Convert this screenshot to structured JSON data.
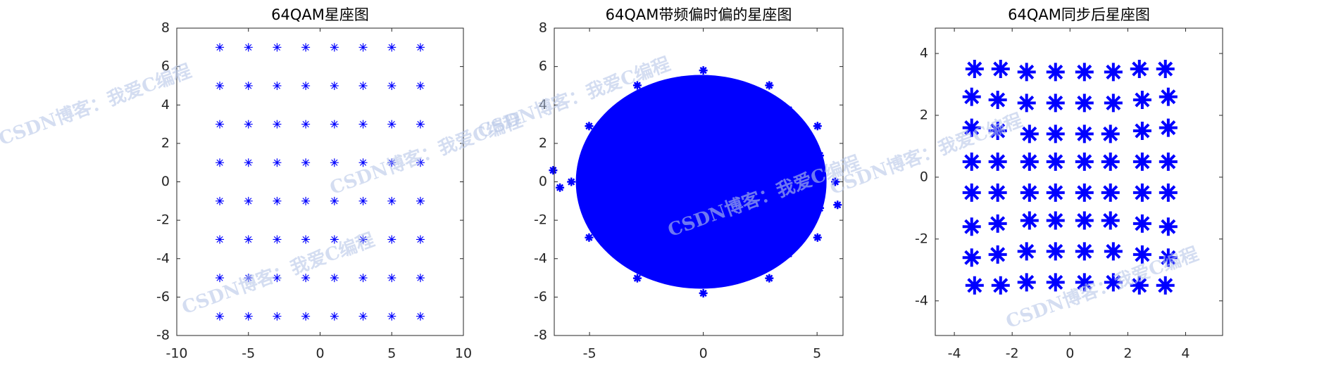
{
  "chart_data": [
    {
      "type": "scatter",
      "title": "64QAM星座图",
      "color": "#0000ff",
      "x": [
        -7,
        -5,
        -3,
        -1,
        1,
        3,
        5,
        7,
        -7,
        -5,
        -3,
        -1,
        1,
        3,
        5,
        7,
        -7,
        -5,
        -3,
        -1,
        1,
        3,
        5,
        7,
        -7,
        -5,
        -3,
        -1,
        1,
        3,
        5,
        7,
        -7,
        -5,
        -3,
        -1,
        1,
        3,
        5,
        7,
        -7,
        -5,
        -3,
        -1,
        1,
        3,
        5,
        7,
        -7,
        -5,
        -3,
        -1,
        1,
        3,
        5,
        7,
        -7,
        -5,
        -3,
        -1,
        1,
        3,
        5,
        7
      ],
      "y": [
        7,
        7,
        7,
        7,
        7,
        7,
        7,
        7,
        5,
        5,
        5,
        5,
        5,
        5,
        5,
        5,
        3,
        3,
        3,
        3,
        3,
        3,
        3,
        3,
        1,
        1,
        1,
        1,
        1,
        1,
        1,
        1,
        -1,
        -1,
        -1,
        -1,
        -1,
        -1,
        -1,
        -1,
        -3,
        -3,
        -3,
        -3,
        -3,
        -3,
        -3,
        -3,
        -5,
        -5,
        -5,
        -5,
        -5,
        -5,
        -5,
        -5,
        -7,
        -7,
        -7,
        -7,
        -7,
        -7,
        -7,
        -7
      ],
      "xlim": [
        -10,
        10
      ],
      "xticks": [
        -10,
        -5,
        0,
        5,
        10
      ],
      "ylim": [
        -8,
        8
      ],
      "yticks": [
        -8,
        -6,
        -4,
        -2,
        0,
        2,
        4,
        6,
        8
      ]
    },
    {
      "type": "scatter",
      "title": "64QAM带频偏时偏的星座图",
      "color": "#0000ff",
      "x": [
        5.8,
        5.02,
        2.9,
        0,
        -2.9,
        -5.02,
        -5.8,
        -5.02,
        -2.9,
        0,
        2.9,
        5.02,
        5.12,
        3.75,
        1.37,
        -1.37,
        -3.75,
        -5.12,
        -5.12,
        -3.75,
        -1.37,
        1.37,
        3.75,
        5.12,
        -6.6,
        5.9,
        -6.3,
        0,
        2,
        -2,
        0,
        3,
        -3
      ],
      "y": [
        0,
        2.9,
        5.02,
        5.8,
        5.02,
        2.9,
        0,
        -2.9,
        -5.02,
        -5.8,
        -5.02,
        -2.9,
        1.37,
        3.75,
        5.12,
        5.12,
        3.75,
        1.37,
        -1.37,
        -3.75,
        -5.12,
        -5.12,
        -3.75,
        -1.37,
        0.6,
        -1.2,
        -0.3,
        0,
        2,
        -2,
        3,
        -1,
        1
      ],
      "xlim": [
        -6.55,
        6.14
      ],
      "xticks": [
        -5,
        0,
        5
      ],
      "ylim": [
        -8,
        8
      ],
      "yticks": [
        -8,
        -6,
        -4,
        -2,
        0,
        2,
        4,
        6,
        8
      ]
    },
    {
      "type": "scatter",
      "title": "64QAM同步后星座图",
      "color": "#0000ff",
      "x": [
        -3.3,
        -2.4,
        -1.5,
        -0.5,
        0.5,
        1.5,
        2.4,
        3.3,
        -3.4,
        -2.5,
        -1.5,
        -0.5,
        0.5,
        1.5,
        2.5,
        3.4,
        -3.4,
        -2.5,
        -1.4,
        -0.5,
        0.5,
        1.4,
        2.5,
        3.4,
        -3.4,
        -2.5,
        -1.4,
        -0.5,
        0.5,
        1.4,
        2.5,
        3.4,
        -3.4,
        -2.5,
        -1.4,
        -0.5,
        0.5,
        1.4,
        2.5,
        3.4,
        -3.4,
        -2.5,
        -1.4,
        -0.5,
        0.5,
        1.4,
        2.5,
        3.4,
        -3.4,
        -2.5,
        -1.5,
        -0.5,
        0.5,
        1.5,
        2.5,
        3.4,
        -3.3,
        -2.4,
        -1.5,
        -0.5,
        0.5,
        1.5,
        2.4,
        3.3
      ],
      "y": [
        3.5,
        3.5,
        3.4,
        3.4,
        3.4,
        3.4,
        3.5,
        3.5,
        2.6,
        2.5,
        2.4,
        2.4,
        2.4,
        2.4,
        2.5,
        2.6,
        1.6,
        1.5,
        1.4,
        1.4,
        1.4,
        1.4,
        1.5,
        1.6,
        0.5,
        0.5,
        0.5,
        0.5,
        0.5,
        0.5,
        0.5,
        0.5,
        -0.5,
        -0.5,
        -0.5,
        -0.5,
        -0.5,
        -0.5,
        -0.5,
        -0.5,
        -1.6,
        -1.5,
        -1.4,
        -1.4,
        -1.4,
        -1.4,
        -1.5,
        -1.6,
        -2.6,
        -2.5,
        -2.4,
        -2.4,
        -2.4,
        -2.4,
        -2.5,
        -2.6,
        -3.5,
        -3.5,
        -3.4,
        -3.4,
        -3.4,
        -3.4,
        -3.5,
        -3.5
      ],
      "xlim": [
        -4.66,
        5.28
      ],
      "xticks": [
        -4,
        -2,
        0,
        2,
        4
      ],
      "ylim": [
        -5.12,
        4.82
      ],
      "yticks": [
        -4,
        -2,
        0,
        2,
        4
      ]
    }
  ],
  "watermark": "CSDN博客：我爱C编程"
}
